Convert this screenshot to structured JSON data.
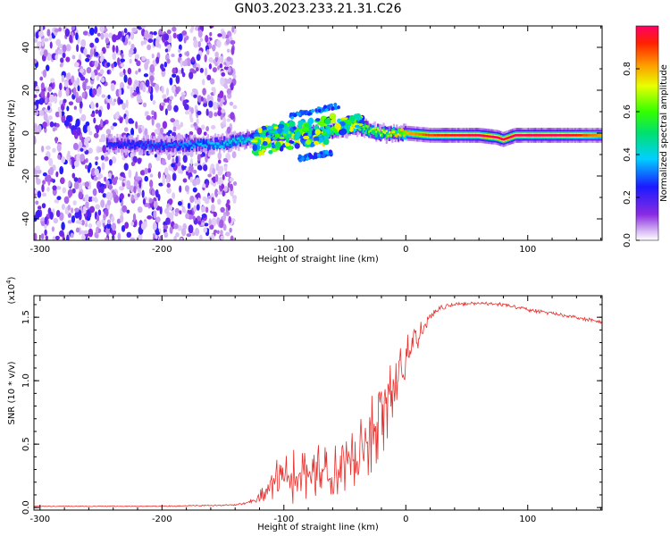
{
  "title": "GN03.2023.233.21.31.C26",
  "chart_data": [
    {
      "type": "heatmap",
      "xlabel": "Height of straight line (km)",
      "ylabel": "Frequency (Hz)",
      "xlim": [
        -305,
        161
      ],
      "ylim": [
        -50,
        50
      ],
      "x_ticks": [
        -300,
        -200,
        -100,
        0,
        100
      ],
      "y_ticks": [
        -40,
        -20,
        0,
        20,
        40
      ],
      "colorbar": {
        "label": "Normalized spectral amplitude",
        "range": [
          0,
          1
        ],
        "ticks": [
          "0.0",
          "0.2",
          "0.4",
          "0.6",
          "0.8"
        ],
        "colormap": "rainbow"
      },
      "noise_region": {
        "x": [
          -305,
          -140
        ],
        "freq": [
          -50,
          50
        ],
        "amplitude": [
          0.03,
          0.25
        ]
      },
      "signal_track": [
        {
          "x": -245,
          "freq": -5,
          "amp": 0.25
        },
        {
          "x": -200,
          "freq": -6,
          "amp": 0.3
        },
        {
          "x": -150,
          "freq": -5,
          "amp": 0.4
        },
        {
          "x": -120,
          "freq": -2,
          "amp": 0.45
        },
        {
          "x": -100,
          "freq": 0,
          "amp": 0.45
        },
        {
          "x": -70,
          "freq": 0,
          "amp": 0.5
        },
        {
          "x": -40,
          "freq": 3,
          "amp": 0.6
        },
        {
          "x": -20,
          "freq": 0,
          "amp": 0.7
        },
        {
          "x": 0,
          "freq": 0,
          "amp": 0.8
        },
        {
          "x": 20,
          "freq": -1,
          "amp": 0.9
        },
        {
          "x": 60,
          "freq": -1,
          "amp": 1.0
        },
        {
          "x": 75,
          "freq": -2,
          "amp": 1.0
        },
        {
          "x": 80,
          "freq": -3,
          "amp": 1.0
        },
        {
          "x": 90,
          "freq": -1,
          "amp": 1.0
        },
        {
          "x": 130,
          "freq": -1,
          "amp": 1.0
        },
        {
          "x": 161,
          "freq": -1,
          "amp": 0.8
        }
      ]
    },
    {
      "type": "line",
      "xlabel": "Height of straight line (km)",
      "ylabel": "SNR (10 * v/v)",
      "y_multiplier": "(x10",
      "y_multiplier_exp": "4",
      "y_multiplier_close": ")",
      "xlim": [
        -305,
        161
      ],
      "ylim": [
        -0.02,
        1.67
      ],
      "x_ticks": [
        -300,
        -200,
        -100,
        0,
        100
      ],
      "y_ticks": [
        0.0,
        0.5,
        1.0,
        1.5
      ],
      "y_tick_labels": [
        "0.0",
        "0.5",
        "1.0",
        "1.5"
      ],
      "series": [
        {
          "color": "#e8302c",
          "x": [
            -305,
            -200,
            -140,
            -125,
            -115,
            -110,
            -100,
            -90,
            -80,
            -70,
            -60,
            -50,
            -40,
            -30,
            -20,
            -10,
            0,
            10,
            20,
            30,
            40,
            60,
            80,
            90,
            100,
            120,
            140,
            161
          ],
          "y": [
            0.01,
            0.01,
            0.02,
            0.05,
            0.12,
            0.2,
            0.22,
            0.25,
            0.27,
            0.28,
            0.3,
            0.33,
            0.4,
            0.55,
            0.75,
            0.95,
            1.15,
            1.35,
            1.52,
            1.58,
            1.6,
            1.61,
            1.6,
            1.58,
            1.56,
            1.53,
            1.5,
            1.46
          ],
          "spread": [
            0.003,
            0.004,
            0.006,
            0.02,
            0.08,
            0.15,
            0.2,
            0.22,
            0.22,
            0.22,
            0.2,
            0.22,
            0.25,
            0.3,
            0.35,
            0.3,
            0.2,
            0.1,
            0.04,
            0.02,
            0.015,
            0.015,
            0.015,
            0.015,
            0.015,
            0.015,
            0.015,
            0.015
          ]
        }
      ]
    }
  ]
}
